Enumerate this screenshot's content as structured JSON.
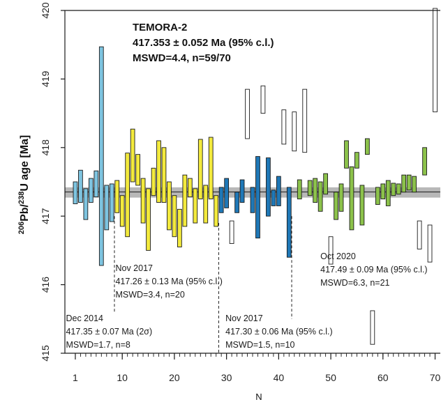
{
  "chart_data": {
    "type": "errorbar",
    "title_lines": [
      "TEMORA-2",
      "417.353 ± 0.052 Ma (95% c.l.)",
      "MSWD=4.4, n=59/70"
    ],
    "xlabel": "N",
    "ylabel_parts": {
      "pre": "206",
      "pb": "Pb/",
      "sup2": "238",
      "post": "U age [Ma]"
    },
    "xlim": [
      -1,
      71
    ],
    "ylim": [
      415,
      420
    ],
    "xticks": [
      1,
      10,
      20,
      30,
      40,
      50,
      60,
      70
    ],
    "yticks": [
      415,
      416,
      417,
      418,
      419,
      420
    ],
    "weighted_mean": {
      "value": 417.353,
      "band": [
        417.27,
        417.42
      ]
    },
    "colors": {
      "session1": "#7ec4e0",
      "session2": "#f3ea3d",
      "session3": "#1f78b7",
      "session4": "#8cc24b",
      "rejected": "#ffffff",
      "band": "#b8b8b8"
    },
    "bars": [
      {
        "x": 1,
        "lo": 417.18,
        "hi": 417.5,
        "g": "session1"
      },
      {
        "x": 2,
        "lo": 417.2,
        "hi": 417.67,
        "g": "session1"
      },
      {
        "x": 3,
        "lo": 416.95,
        "hi": 417.4,
        "g": "session1"
      },
      {
        "x": 4,
        "lo": 417.2,
        "hi": 417.55,
        "g": "session1"
      },
      {
        "x": 5,
        "lo": 417.28,
        "hi": 417.66,
        "g": "session1"
      },
      {
        "x": 6,
        "lo": 416.28,
        "hi": 419.47,
        "g": "session1"
      },
      {
        "x": 7,
        "lo": 416.8,
        "hi": 417.45,
        "g": "session1"
      },
      {
        "x": 8,
        "lo": 416.92,
        "hi": 417.47,
        "g": "session1"
      },
      {
        "x": 9,
        "lo": 417.05,
        "hi": 417.52,
        "g": "session2"
      },
      {
        "x": 10,
        "lo": 416.85,
        "hi": 417.3,
        "g": "session2"
      },
      {
        "x": 11,
        "lo": 416.7,
        "hi": 417.92,
        "g": "session2"
      },
      {
        "x": 12,
        "lo": 417.5,
        "hi": 418.27,
        "g": "session2"
      },
      {
        "x": 13,
        "lo": 417.45,
        "hi": 417.9,
        "g": "session2"
      },
      {
        "x": 14,
        "lo": 416.9,
        "hi": 417.55,
        "g": "session2"
      },
      {
        "x": 15,
        "lo": 416.5,
        "hi": 417.4,
        "g": "session2"
      },
      {
        "x": 16,
        "lo": 417.3,
        "hi": 417.7,
        "g": "session2"
      },
      {
        "x": 17,
        "lo": 417.2,
        "hi": 418.1,
        "g": "session2"
      },
      {
        "x": 18,
        "lo": 417.2,
        "hi": 418.0,
        "g": "session2"
      },
      {
        "x": 19,
        "lo": 416.8,
        "hi": 417.5,
        "g": "session2"
      },
      {
        "x": 20,
        "lo": 416.7,
        "hi": 417.3,
        "g": "session2"
      },
      {
        "x": 21,
        "lo": 416.55,
        "hi": 417.1,
        "g": "session2"
      },
      {
        "x": 22,
        "lo": 416.85,
        "hi": 417.6,
        "g": "session2"
      },
      {
        "x": 23,
        "lo": 417.28,
        "hi": 417.55,
        "g": "session2"
      },
      {
        "x": 24,
        "lo": 416.9,
        "hi": 417.4,
        "g": "session2"
      },
      {
        "x": 25,
        "lo": 417.25,
        "hi": 418.12,
        "g": "session2"
      },
      {
        "x": 26,
        "lo": 416.9,
        "hi": 417.45,
        "g": "session2"
      },
      {
        "x": 27,
        "lo": 417.25,
        "hi": 418.15,
        "g": "session2"
      },
      {
        "x": 28,
        "lo": 416.85,
        "hi": 417.3,
        "g": "session2"
      },
      {
        "x": 29,
        "lo": 417.05,
        "hi": 417.42,
        "g": "session3"
      },
      {
        "x": 30,
        "lo": 417.12,
        "hi": 417.55,
        "g": "session3"
      },
      {
        "x": 31,
        "lo": 416.6,
        "hi": 416.93,
        "g": "rejected"
      },
      {
        "x": 32,
        "lo": 417.05,
        "hi": 417.35,
        "g": "session3"
      },
      {
        "x": 33,
        "lo": 417.2,
        "hi": 417.53,
        "g": "session3"
      },
      {
        "x": 34,
        "lo": 418.13,
        "hi": 418.85,
        "g": "rejected"
      },
      {
        "x": 35,
        "lo": 417.05,
        "hi": 417.42,
        "g": "session3"
      },
      {
        "x": 36,
        "lo": 416.68,
        "hi": 417.87,
        "g": "session3"
      },
      {
        "x": 37,
        "lo": 418.5,
        "hi": 418.9,
        "g": "rejected"
      },
      {
        "x": 38,
        "lo": 417.0,
        "hi": 417.85,
        "g": "session3"
      },
      {
        "x": 39,
        "lo": 417.15,
        "hi": 417.38,
        "g": "session3"
      },
      {
        "x": 40,
        "lo": 417.15,
        "hi": 417.58,
        "g": "session3"
      },
      {
        "x": 41,
        "lo": 418.05,
        "hi": 418.55,
        "g": "rejected"
      },
      {
        "x": 42,
        "lo": 416.4,
        "hi": 417.42,
        "g": "session3"
      },
      {
        "x": 43,
        "lo": 417.95,
        "hi": 418.52,
        "g": "rejected"
      },
      {
        "x": 44,
        "lo": 417.25,
        "hi": 417.53,
        "g": "session4"
      },
      {
        "x": 45,
        "lo": 417.93,
        "hi": 418.85,
        "g": "rejected"
      },
      {
        "x": 46,
        "lo": 417.3,
        "hi": 417.52,
        "g": "session4"
      },
      {
        "x": 47,
        "lo": 417.2,
        "hi": 417.55,
        "g": "session4"
      },
      {
        "x": 48,
        "lo": 417.07,
        "hi": 417.5,
        "g": "session4"
      },
      {
        "x": 49,
        "lo": 417.32,
        "hi": 417.62,
        "g": "session4"
      },
      {
        "x": 50,
        "lo": 416.3,
        "hi": 416.7,
        "g": "rejected"
      },
      {
        "x": 51,
        "lo": 416.95,
        "hi": 417.35,
        "g": "session4"
      },
      {
        "x": 52,
        "lo": 417.07,
        "hi": 417.47,
        "g": "session4"
      },
      {
        "x": 53,
        "lo": 417.7,
        "hi": 418.1,
        "g": "session4"
      },
      {
        "x": 54,
        "lo": 416.8,
        "hi": 417.72,
        "g": "session4"
      },
      {
        "x": 55,
        "lo": 417.7,
        "hi": 417.93,
        "g": "session4"
      },
      {
        "x": 56,
        "lo": 416.87,
        "hi": 417.45,
        "g": "session4"
      },
      {
        "x": 57,
        "lo": 417.9,
        "hi": 418.13,
        "g": "session4"
      },
      {
        "x": 58,
        "lo": 415.13,
        "hi": 415.62,
        "g": "rejected"
      },
      {
        "x": 59,
        "lo": 417.17,
        "hi": 417.42,
        "g": "session4"
      },
      {
        "x": 60,
        "lo": 417.25,
        "hi": 417.47,
        "g": "session4"
      },
      {
        "x": 61,
        "lo": 417.15,
        "hi": 417.52,
        "g": "session4"
      },
      {
        "x": 62,
        "lo": 417.3,
        "hi": 417.48,
        "g": "session4"
      },
      {
        "x": 63,
        "lo": 417.32,
        "hi": 417.47,
        "g": "session4"
      },
      {
        "x": 64,
        "lo": 417.35,
        "hi": 417.6,
        "g": "session4"
      },
      {
        "x": 65,
        "lo": 417.38,
        "hi": 417.6,
        "g": "session4"
      },
      {
        "x": 66,
        "lo": 417.35,
        "hi": 417.58,
        "g": "session4"
      },
      {
        "x": 67,
        "lo": 416.52,
        "hi": 416.93,
        "g": "rejected"
      },
      {
        "x": 68,
        "lo": 417.6,
        "hi": 418.0,
        "g": "session4"
      },
      {
        "x": 69,
        "lo": 416.33,
        "hi": 416.87,
        "g": "rejected"
      },
      {
        "x": 70,
        "lo": 418.52,
        "hi": 420.03,
        "g": "rejected"
      }
    ],
    "session_dividers": [
      {
        "x": 8.5,
        "from": 415.6,
        "to": 417.0
      },
      {
        "x": 28.5,
        "from": 415.0,
        "to": 416.9
      },
      {
        "x": 42.5,
        "from": 415.5,
        "to": 417.0
      }
    ],
    "annotations": [
      {
        "lines": [
          "Dec 2014",
          "417.35 ± 0.07 Ma (2σ)",
          "MSWD=1.7, n=8"
        ],
        "x": -0.8,
        "y": 415.47
      },
      {
        "lines": [
          "Nov 2017",
          "417.26 ± 0.13 Ma (95% c.l.)",
          "MSWD=3.4, n=20"
        ],
        "x": 8.7,
        "y": 416.2
      },
      {
        "lines": [
          "Nov 2017",
          "417.30 ± 0.06 Ma (95% c.l.)",
          "MSWD=1.5, n=10"
        ],
        "x": 29.8,
        "y": 415.47
      },
      {
        "lines": [
          "Oct 2020",
          "417.49 ± 0.09 Ma (95% c.l.)",
          "MSWD=6.3, n=21"
        ],
        "x": 48.0,
        "y": 416.37
      }
    ]
  }
}
